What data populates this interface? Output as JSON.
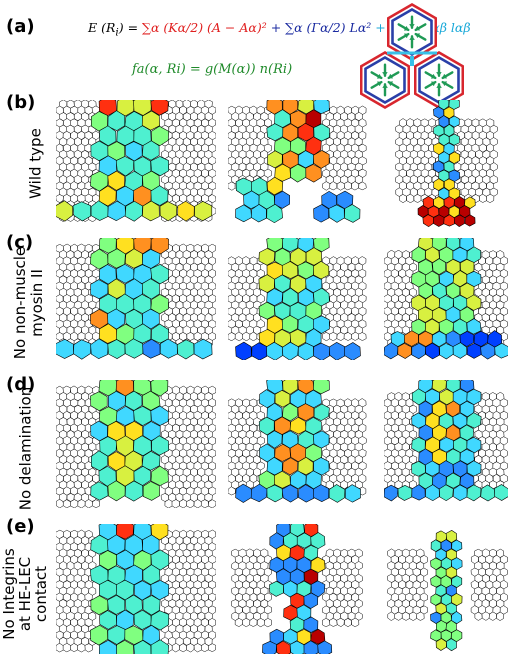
{
  "panels": {
    "a": "(a)",
    "b": "(b)",
    "c": "(c)",
    "d": "(d)",
    "e": "(e)"
  },
  "equations": {
    "energy_lhs": "E (R",
    "energy_lhs_sub": "i",
    "energy_rhs_eq": ") = ",
    "term1": "∑α (Kα/2) (A − Aα)²",
    "term2": "+ ∑α (Γα/2) Lα²",
    "term3": "+ ∑α,β Λαβ lαβ",
    "force": "fa(α, Ri) = g(M(α)) n(Ri)"
  },
  "row_labels": {
    "b": "Wild type",
    "c_line1": "No non-muscle",
    "c_line2": "myosin II",
    "d": "No delamination",
    "e_line1": "No Integrins",
    "e_line2": "at HE-LEC",
    "e_line3": "contact"
  },
  "colors": {
    "outline": "#000000",
    "hex_outer_red": "#d8262e",
    "hex_blue": "#2a3fa8",
    "hex_cyan": "#38c0e8",
    "arrow_green": "#1f9a55",
    "cell_palette": [
      "#0040ff",
      "#2a8cff",
      "#40d8ff",
      "#4ef0d0",
      "#80ff80",
      "#d8f040",
      "#ffe020",
      "#ff9020",
      "#ff3010",
      "#b80000"
    ]
  }
}
